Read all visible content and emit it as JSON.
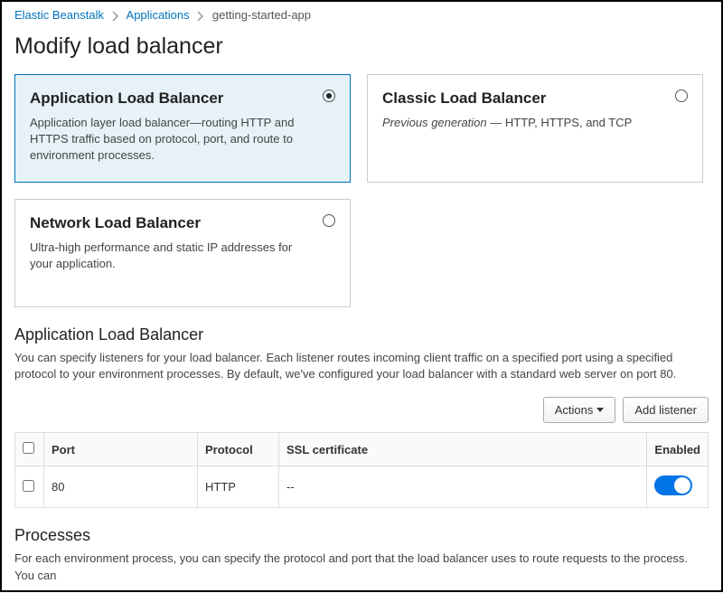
{
  "breadcrumb": {
    "items": [
      {
        "label": "Elastic Beanstalk",
        "link": true
      },
      {
        "label": "Applications",
        "link": true
      },
      {
        "label": "getting-started-app",
        "link": false
      }
    ]
  },
  "colors": {
    "link": "#0073bb",
    "selected_bg": "#e6f2f8",
    "selected_border": "#0073bb",
    "card_border": "#cccccc",
    "toggle_on": "#0073e6"
  },
  "page_title": "Modify load balancer",
  "options": [
    {
      "title": "Application Load Balancer",
      "desc": "Application layer load balancer—routing HTTP and HTTPS traffic based on protocol, port, and route to environment processes.",
      "selected": true
    },
    {
      "title": "Classic Load Balancer",
      "desc_html": "<em>Previous generation</em> — HTTP, HTTPS, and TCP",
      "selected": false
    },
    {
      "title": "Network Load Balancer",
      "desc": "Ultra-high performance and static IP addresses for your application.",
      "selected": false
    }
  ],
  "alb_section": {
    "title": "Application Load Balancer",
    "desc": "You can specify listeners for your load balancer. Each listener routes incoming client traffic on a specified port using a specified protocol to your environment processes. By default, we've configured your load balancer with a standard web server on port 80.",
    "actions_label": "Actions",
    "add_listener_label": "Add listener",
    "columns": {
      "port": "Port",
      "protocol": "Protocol",
      "ssl": "SSL certificate",
      "enabled": "Enabled"
    },
    "rows": [
      {
        "port": "80",
        "protocol": "HTTP",
        "ssl": "--",
        "enabled": true
      }
    ]
  },
  "processes_section": {
    "title": "Processes",
    "desc": "For each environment process, you can specify the protocol and port that the load balancer uses to route requests to the process. You can"
  }
}
